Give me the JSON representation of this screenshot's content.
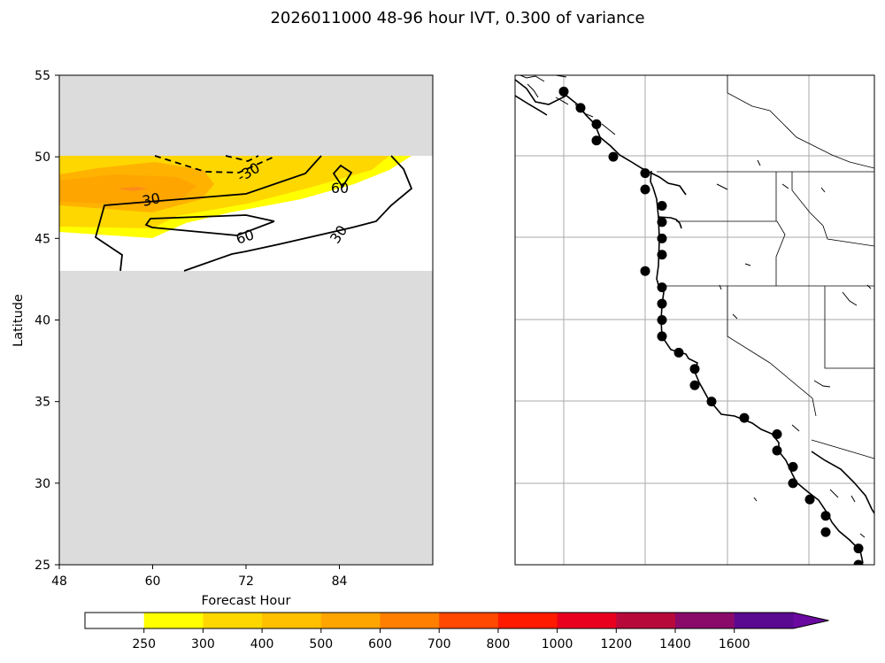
{
  "title": "2026011000 48-96 hour IVT, 0.300 of variance",
  "chart_data": [
    {
      "type": "contour",
      "title": "2026011000 48-96 hour IVT, 0.300 of variance",
      "xlabel": "Forecast Hour",
      "ylabel": "Latitude",
      "xlim": [
        48,
        96
      ],
      "ylim": [
        25,
        55
      ],
      "xticks": [
        "48",
        "60",
        "72",
        "84"
      ],
      "yticks": [
        "25",
        "30",
        "35",
        "40",
        "45",
        "50",
        "55"
      ],
      "valid_lat_range": [
        43,
        50
      ],
      "filled_levels": [
        {
          "range": "250-300",
          "color": "#ffff00",
          "region": "45-50N, hours 48-94"
        },
        {
          "range": "300-400",
          "color": "#ffd700",
          "region": "45.5-50N, hours 48-91"
        },
        {
          "range": "400-500",
          "color": "#ffb300",
          "region": "46.5-49N, hours 48-68"
        },
        {
          "range": "500-600",
          "color": "#ffa500",
          "region": "47.3-47.7N, hours 55-61"
        }
      ],
      "contour_lines": [
        {
          "level": -30,
          "style": "dashed",
          "label": "-30"
        },
        {
          "level": 30,
          "style": "solid",
          "label": "30"
        },
        {
          "level": 60,
          "style": "solid",
          "label": "60"
        }
      ],
      "contour_labels": [
        "30",
        "60",
        "-30",
        "60",
        "30"
      ]
    },
    {
      "type": "map",
      "region": "US West Coast",
      "lat_range": [
        25,
        55
      ],
      "points_lat": [
        54,
        53,
        52,
        51,
        50,
        49,
        48,
        47,
        46,
        45,
        44,
        43,
        42,
        41,
        40,
        39,
        38,
        37,
        36,
        35,
        34,
        33,
        32,
        31,
        30,
        29,
        28,
        27,
        26,
        25
      ]
    }
  ],
  "colorbar": {
    "tick_labels": [
      "250",
      "300",
      "400",
      "500",
      "600",
      "700",
      "800",
      "1000",
      "1200",
      "1400",
      "1600"
    ],
    "colors": [
      "#ffffff",
      "#ffff00",
      "#ffd700",
      "#ffc000",
      "#ffa500",
      "#ff7f00",
      "#ff4800",
      "#ff1a00",
      "#e8001e",
      "#b80a3a",
      "#8a0a6a",
      "#5a0a90",
      "#6a0aa0"
    ]
  }
}
